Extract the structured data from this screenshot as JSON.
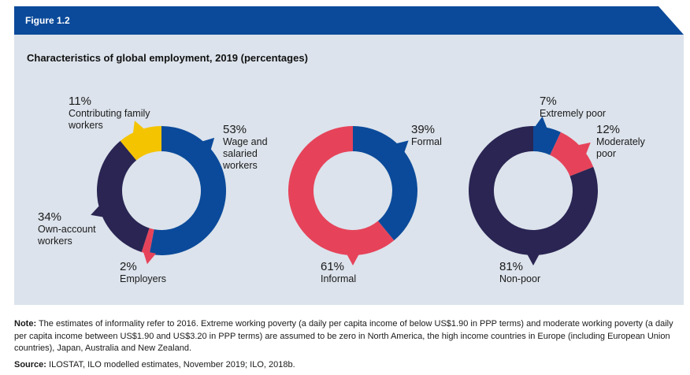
{
  "figure_label": "Figure 1.2",
  "colors": {
    "header": "#0b4a9a",
    "panel": "#dce3ec",
    "blue": "#0b4a9a",
    "navy": "#2a2553",
    "yellow": "#f5c400",
    "red": "#e6435a"
  },
  "chart_data": [
    {
      "type": "pie",
      "title": "Characteristics of global employment, 2019 (percentages)",
      "donut": true,
      "slices": [
        {
          "label": "Wage and salaried workers",
          "lines": [
            "Wage and",
            "salaried",
            "workers"
          ],
          "pct_text": "53%",
          "value": 53,
          "color": "#0b4a9a"
        },
        {
          "label": "Employers",
          "lines": [
            "Employers"
          ],
          "pct_text": "2%",
          "value": 2,
          "color": "#e6435a"
        },
        {
          "label": "Own-account workers",
          "lines": [
            "Own-account",
            "workers"
          ],
          "pct_text": "34%",
          "value": 34,
          "color": "#2a2553"
        },
        {
          "label": "Contributing family workers",
          "lines": [
            "Contributing family",
            "workers"
          ],
          "pct_text": "11%",
          "value": 11,
          "color": "#f5c400"
        }
      ]
    },
    {
      "type": "pie",
      "donut": true,
      "slices": [
        {
          "label": "Formal",
          "lines": [
            "Formal"
          ],
          "pct_text": "39%",
          "value": 39,
          "color": "#0b4a9a"
        },
        {
          "label": "Informal",
          "lines": [
            "Informal"
          ],
          "pct_text": "61%",
          "value": 61,
          "color": "#e6435a"
        }
      ]
    },
    {
      "type": "pie",
      "donut": true,
      "slices": [
        {
          "label": "Extremely poor",
          "lines": [
            "Extremely poor"
          ],
          "pct_text": "7%",
          "value": 7,
          "color": "#0b4a9a"
        },
        {
          "label": "Moderately poor",
          "lines": [
            "Moderately",
            "poor"
          ],
          "pct_text": "12%",
          "value": 12,
          "color": "#e6435a"
        },
        {
          "label": "Non-poor",
          "lines": [
            "Non-poor"
          ],
          "pct_text": "81%",
          "value": 81,
          "color": "#2a2553"
        }
      ]
    }
  ],
  "note": {
    "label": "Note:",
    "text": " The estimates of informality refer to 2016. Extreme working poverty (a daily per capita income of below US$1.90 in PPP terms) and moderate working poverty (a daily per capita income between US$1.90 and US$3.20 in PPP terms) are assumed to be zero in North America, the high income countries in Europe (including European Union countries), Japan, Australia and New Zealand."
  },
  "source": {
    "label": "Source:",
    "text": " ILOSTAT, ILO modelled estimates, November 2019; ILO, 2018b."
  }
}
